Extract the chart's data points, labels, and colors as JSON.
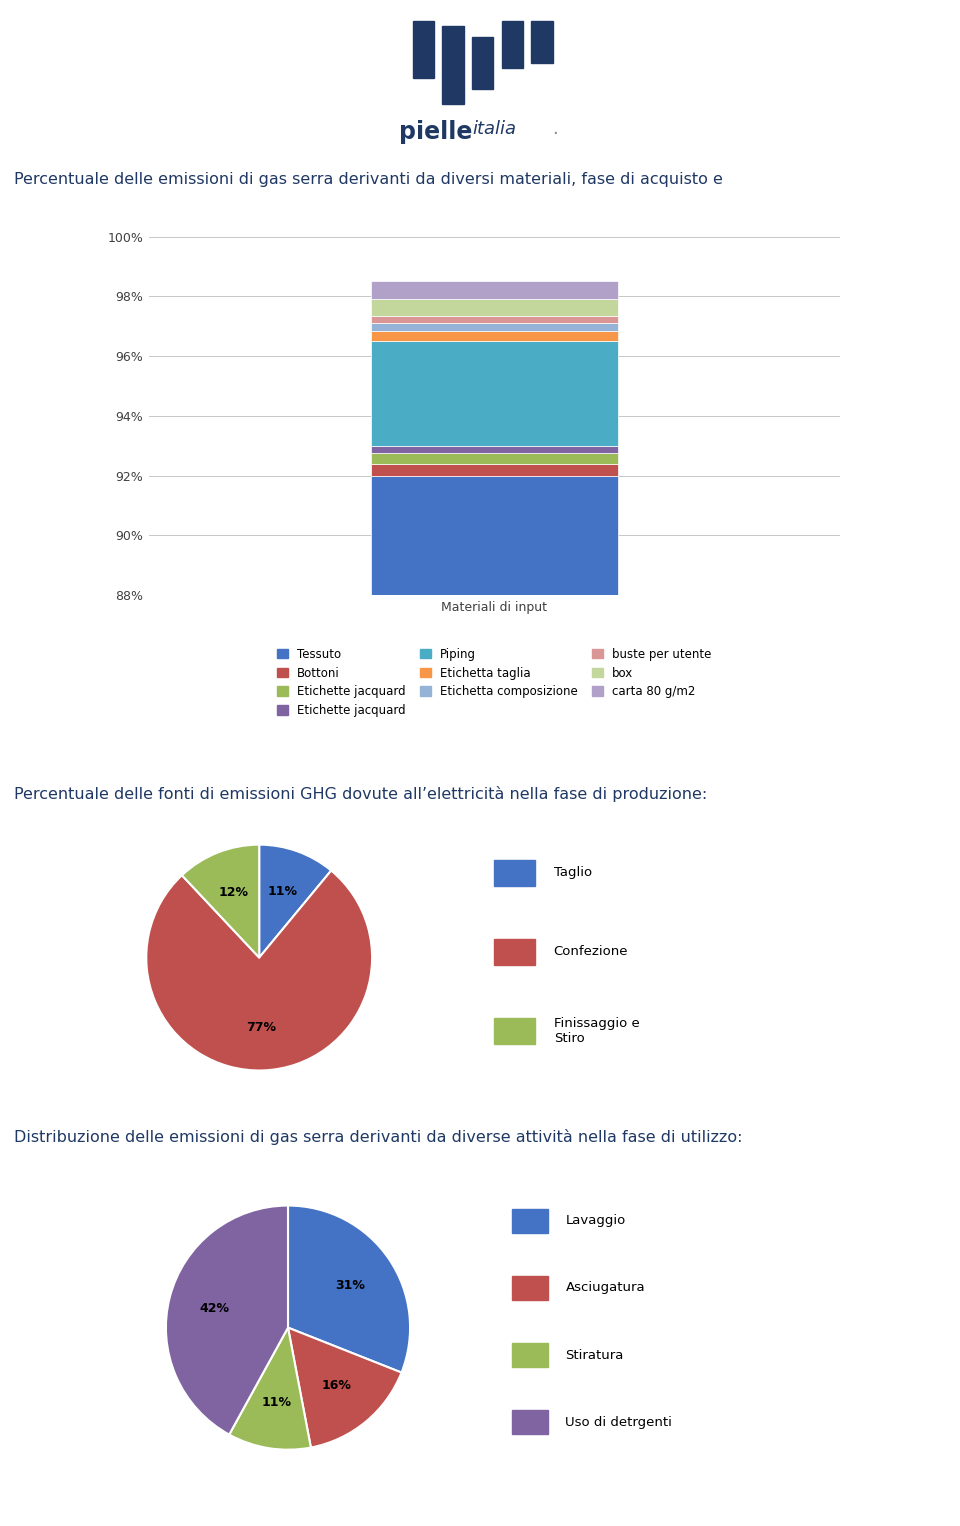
{
  "title1": "Percentuale delle emissioni di gas serra derivanti da diversi materiali, fase di acquisto e",
  "title2": "Percentuale delle fonti di emissioni GHG dovute all’elettricità nella fase di produzione:",
  "title3": "Distribuzione delle emissioni di gas serra derivanti da diverse attività nella fase di utilizzo:",
  "title_color": "#1F3864",
  "bar_xlabel": "Materiali di input",
  "bar_segments": [
    {
      "label": "Tessuto",
      "value": 4.0,
      "color": "#4472C4"
    },
    {
      "label": "Bottoni",
      "value": 0.4,
      "color": "#C0504D"
    },
    {
      "label": "Etichette jacquard",
      "value": 0.35,
      "color": "#9BBB59"
    },
    {
      "label": "Etichette jacquard",
      "value": 0.25,
      "color": "#8064A2"
    },
    {
      "label": "Piping",
      "value": 3.5,
      "color": "#4BACC6"
    },
    {
      "label": "Etichetta taglia",
      "value": 0.35,
      "color": "#F79646"
    },
    {
      "label": "Etichetta composizione",
      "value": 0.25,
      "color": "#95B3D7"
    },
    {
      "label": "buste per utente",
      "value": 0.25,
      "color": "#D99694"
    },
    {
      "label": "box",
      "value": 0.55,
      "color": "#C3D69B"
    },
    {
      "label": "carta 80 g/m2",
      "value": 0.6,
      "color": "#B1A0C7"
    }
  ],
  "bar_base": 88.0,
  "bar_ylim": [
    88,
    100
  ],
  "bar_yticks": [
    88,
    90,
    92,
    94,
    96,
    98,
    100
  ],
  "bar_ytick_labels": [
    "88%",
    "90%",
    "92%",
    "94%",
    "96%",
    "98%",
    "100%"
  ],
  "pie1_values": [
    11,
    77,
    12
  ],
  "pie1_labels": [
    "Taglio",
    "Confezione",
    "Finissaggio e\nStiro"
  ],
  "pie1_colors": [
    "#4472C4",
    "#C0504D",
    "#9BBB59"
  ],
  "pie1_pct_labels": [
    "11%",
    "77%",
    "12%"
  ],
  "pie2_values": [
    31,
    16,
    11,
    42
  ],
  "pie2_labels": [
    "Lavaggio",
    "Asciugatura",
    "Stiratura",
    "Uso di detrgenti"
  ],
  "pie2_colors": [
    "#4472C4",
    "#C0504D",
    "#9BBB59",
    "#8064A2"
  ],
  "pie2_pct_labels": [
    "31%",
    "16%",
    "11%",
    "42%"
  ],
  "legend1_labels": [
    "Tessuto",
    "Bottoni",
    "Etichette jacquard",
    "Etichette jacquard",
    "Piping",
    "Etichetta taglia",
    "Etichetta composizione",
    "buste per utente",
    "box",
    "carta 80 g/m2"
  ],
  "legend1_colors": [
    "#4472C4",
    "#C0504D",
    "#9BBB59",
    "#8064A2",
    "#4BACC6",
    "#F79646",
    "#95B3D7",
    "#D99694",
    "#C3D69B",
    "#B1A0C7"
  ],
  "bg_color": "#FFFFFF",
  "text_color": "#404040",
  "logo_bar_color": "#1F3864"
}
